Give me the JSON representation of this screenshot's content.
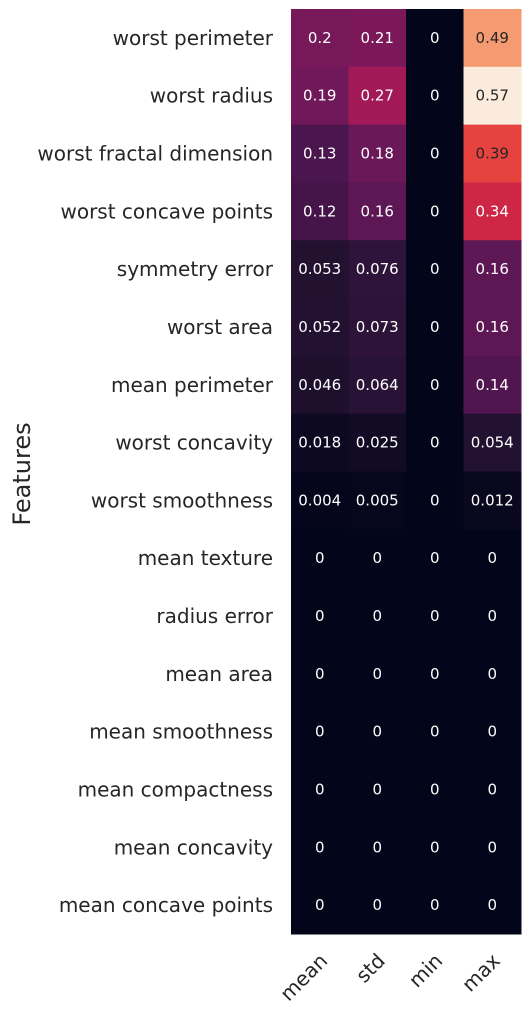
{
  "chart_data": {
    "type": "heatmap",
    "ylabel": "Features",
    "xlabel": "",
    "columns": [
      "mean",
      "std",
      "min",
      "max"
    ],
    "rows": [
      "worst perimeter",
      "worst radius",
      "worst fractal dimension",
      "worst concave points",
      "symmetry error",
      "worst area",
      "mean perimeter",
      "worst concavity",
      "worst smoothness",
      "mean texture",
      "radius error",
      "mean area",
      "mean smoothness",
      "mean compactness",
      "mean concavity",
      "mean concave points"
    ],
    "values": [
      [
        0.2,
        0.21,
        0,
        0.49
      ],
      [
        0.19,
        0.27,
        0,
        0.57
      ],
      [
        0.13,
        0.18,
        0,
        0.39
      ],
      [
        0.12,
        0.16,
        0,
        0.34
      ],
      [
        0.053,
        0.076,
        0,
        0.16
      ],
      [
        0.052,
        0.073,
        0,
        0.16
      ],
      [
        0.046,
        0.064,
        0,
        0.14
      ],
      [
        0.018,
        0.025,
        0,
        0.054
      ],
      [
        0.004,
        0.005,
        0,
        0.012
      ],
      [
        0,
        0,
        0,
        0
      ],
      [
        0,
        0,
        0,
        0
      ],
      [
        0,
        0,
        0,
        0
      ],
      [
        0,
        0,
        0,
        0
      ],
      [
        0,
        0,
        0,
        0
      ],
      [
        0,
        0,
        0,
        0
      ],
      [
        0,
        0,
        0,
        0
      ]
    ],
    "colormap": "rocket",
    "vmin": 0,
    "vmax": 0.57,
    "colorbar": false
  }
}
